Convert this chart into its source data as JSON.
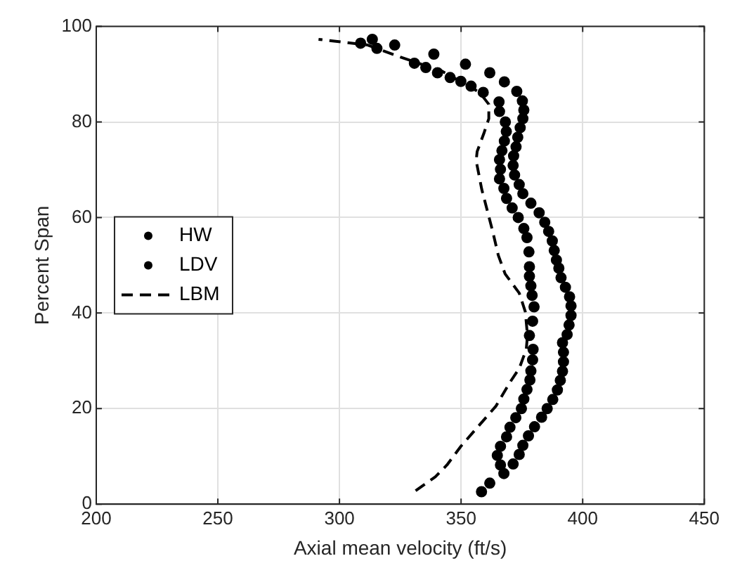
{
  "chart_data": {
    "type": "scatter",
    "xlabel": "Axial mean velocity (ft/s)",
    "ylabel": "Percent Span",
    "xlim": [
      200,
      450
    ],
    "xticks": [
      200,
      250,
      300,
      350,
      400,
      450
    ],
    "ylim": [
      0,
      100
    ],
    "yticks": [
      0,
      20,
      40,
      60,
      80,
      100
    ],
    "grid": true,
    "legend": "left",
    "series": [
      {
        "name": "HW",
        "marker": "circle",
        "color": "#000000",
        "x": [
          358.4,
          361.8,
          367.6,
          371.4,
          373.9,
          375.4,
          377.7,
          380.2,
          383.1,
          385.4,
          387.7,
          389.6,
          390.8,
          391.7,
          392.1,
          392.1,
          391.7,
          393.6,
          394.4,
          395.2,
          395.2,
          394.6,
          392.9,
          391.1,
          390.2,
          389.2,
          388.3,
          387.5,
          386.0,
          384.4,
          382.1,
          378.7,
          375.4,
          373.9,
          372.0,
          371.4,
          371.6,
          372.6,
          373.3,
          374.3,
          375.4,
          375.8,
          375.2,
          372.9,
          367.8,
          361.8,
          351.8,
          338.8,
          322.7,
          313.5
        ],
        "values": [
          2.6,
          4.4,
          6.4,
          8.4,
          10.4,
          12.3,
          14.3,
          16.2,
          18.2,
          20.0,
          21.9,
          23.9,
          25.9,
          27.8,
          29.8,
          31.8,
          33.8,
          35.5,
          37.5,
          39.5,
          41.5,
          43.4,
          45.4,
          47.4,
          49.4,
          51.1,
          53.1,
          55.1,
          57.1,
          59.0,
          61.0,
          63.0,
          65.0,
          66.9,
          68.9,
          70.9,
          72.9,
          74.8,
          76.8,
          78.8,
          80.7,
          82.5,
          84.4,
          86.4,
          88.4,
          90.3,
          92.1,
          94.2,
          96.1,
          97.3
        ]
      },
      {
        "name": "LDV",
        "marker": "circle",
        "color": "#000000",
        "x": [
          366.2,
          364.9,
          366.2,
          368.7,
          370.1,
          372.5,
          374.8,
          375.8,
          377.1,
          378.3,
          378.7,
          379.4,
          379.6,
          378.1,
          379.4,
          380.0,
          379.2,
          378.7,
          378.1,
          378.1,
          377.9,
          377.1,
          375.8,
          373.5,
          371.0,
          368.7,
          367.6,
          365.8,
          366.2,
          365.8,
          366.8,
          367.8,
          368.6,
          368.2,
          365.8,
          365.6,
          359.1,
          354.1,
          349.9,
          345.5,
          340.3,
          335.5,
          330.8,
          315.4,
          308.7
        ],
        "values": [
          8.2,
          10.2,
          12.1,
          14.1,
          16.1,
          18.1,
          20.0,
          22.0,
          24.0,
          26.0,
          27.9,
          30.2,
          32.4,
          35.3,
          38.3,
          41.3,
          43.7,
          45.7,
          47.7,
          49.7,
          52.8,
          55.8,
          57.7,
          60.0,
          62.0,
          64.0,
          66.1,
          68.1,
          70.1,
          72.1,
          74.0,
          76.0,
          78.0,
          80.0,
          82.2,
          84.2,
          86.2,
          87.5,
          88.5,
          89.3,
          90.3,
          91.4,
          92.3,
          95.4,
          96.5
        ]
      },
      {
        "name": "LBM",
        "type": "line",
        "marker": "none",
        "line_style": "dashed",
        "color": "#000000",
        "x": [
          331.3,
          339.4,
          344.2,
          349.9,
          357.6,
          364.3,
          370.1,
          373.9,
          376.8,
          377.3,
          376.4,
          373.9,
          368.1,
          365.3,
          363.0,
          361.0,
          358.5,
          356.2,
          356.6,
          359.5,
          361.4,
          361.4,
          357.6,
          342.3,
          325.0,
          311.6,
          291.4
        ],
        "values": [
          2.8,
          5.7,
          8.2,
          12.1,
          16.6,
          20.5,
          25.5,
          28.4,
          32.4,
          35.3,
          40.3,
          44.2,
          48.2,
          52.1,
          57.1,
          61.0,
          65.9,
          71.9,
          73.8,
          77.8,
          80.7,
          83.7,
          86.2,
          90.6,
          93.6,
          96.1,
          97.3
        ]
      }
    ]
  }
}
